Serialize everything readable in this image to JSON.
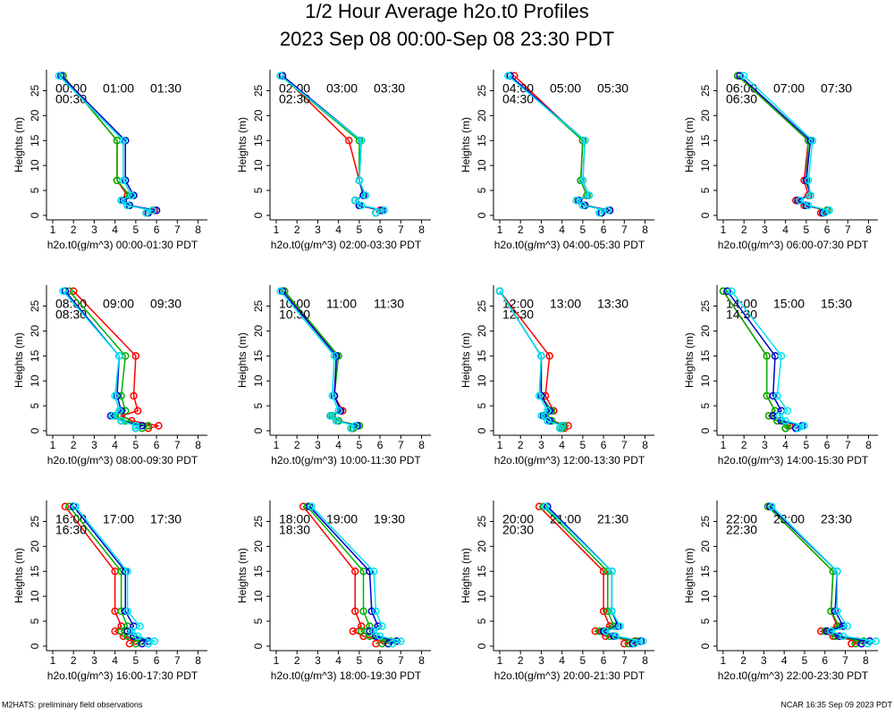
{
  "title": "1/2 Hour Average h2o.t0 Profiles",
  "subtitle": "2023 Sep 08 00:00-Sep 08 23:30 PDT",
  "footer_left": "M2HATS: preliminary field observations",
  "footer_right": "NCAR 16:35 Sep 09 2023 PDT",
  "chart_data": [
    {
      "type": "line",
      "xlabel": "h2o.t0(g/m^3) 00:00-01:30 PDT",
      "ylabel": "Heights (m)",
      "xlim": [
        0.7,
        8.45
      ],
      "ylim": [
        -0.9,
        29.2
      ],
      "xticks": [
        1,
        2,
        3,
        4,
        5,
        6,
        7,
        8
      ],
      "yticks": [
        0,
        5,
        10,
        15,
        20,
        25
      ],
      "y": [
        28,
        15,
        7,
        4,
        3,
        2,
        1,
        0.5
      ],
      "series": [
        {
          "name": "00:00",
          "color": "#ff0000",
          "values": [
            1.5,
            4.1,
            4.1,
            4.6,
            4.3,
            4.6,
            5.9,
            5.5
          ]
        },
        {
          "name": "00:30",
          "color": "#00b000",
          "values": [
            1.5,
            4.1,
            4.1,
            4.7,
            4.3,
            4.6,
            5.8,
            5.5
          ]
        },
        {
          "name": "01:00",
          "color": "#0000cc",
          "values": [
            1.4,
            4.5,
            4.5,
            4.9,
            4.4,
            4.7,
            6.0,
            5.6
          ]
        },
        {
          "name": "01:30",
          "color": "#00e5ee",
          "values": [
            1.3,
            4.4,
            4.4,
            4.8,
            4.3,
            4.6,
            5.8,
            5.5
          ]
        }
      ]
    },
    {
      "type": "line",
      "xlabel": "h2o.t0(g/m^3) 02:00-03:30 PDT",
      "ylabel": "Heights (m)",
      "xlim": [
        0.7,
        8.45
      ],
      "ylim": [
        -0.9,
        29.2
      ],
      "xticks": [
        1,
        2,
        3,
        4,
        5,
        6,
        7,
        8
      ],
      "yticks": [
        0,
        5,
        10,
        15,
        20,
        25
      ],
      "y": [
        28,
        15,
        7,
        4,
        3,
        2,
        1,
        0.5
      ],
      "series": [
        {
          "name": "02:00",
          "color": "#ff0000",
          "values": [
            1.3,
            4.5,
            5.0,
            5.2,
            4.8,
            5.0,
            6.0,
            5.8
          ]
        },
        {
          "name": "02:30",
          "color": "#00b000",
          "values": [
            1.2,
            5.0,
            5.0,
            5.3,
            4.8,
            5.0,
            6.1,
            5.8
          ]
        },
        {
          "name": "03:00",
          "color": "#0000cc",
          "values": [
            1.3,
            5.1,
            5.0,
            5.2,
            4.8,
            5.0,
            6.1,
            5.8
          ]
        },
        {
          "name": "03:30",
          "color": "#00e5ee",
          "values": [
            1.2,
            5.1,
            5.0,
            5.3,
            4.8,
            5.1,
            6.2,
            5.8
          ]
        }
      ]
    },
    {
      "type": "line",
      "xlabel": "h2o.t0(g/m^3) 04:00-05:30 PDT",
      "ylabel": "Heights (m)",
      "xlim": [
        0.7,
        8.45
      ],
      "ylim": [
        -0.9,
        29.2
      ],
      "xticks": [
        1,
        2,
        3,
        4,
        5,
        6,
        7,
        8
      ],
      "yticks": [
        0,
        5,
        10,
        15,
        20,
        25
      ],
      "y": [
        28,
        15,
        7,
        4,
        3,
        2,
        1,
        0.5
      ],
      "series": [
        {
          "name": "04:00",
          "color": "#ff0000",
          "values": [
            1.7,
            5.0,
            4.9,
            5.2,
            4.7,
            5.1,
            6.3,
            5.9
          ]
        },
        {
          "name": "04:30",
          "color": "#00b000",
          "values": [
            1.5,
            5.0,
            4.9,
            5.2,
            4.7,
            5.0,
            6.2,
            5.8
          ]
        },
        {
          "name": "05:00",
          "color": "#0000cc",
          "values": [
            1.5,
            5.1,
            5.0,
            5.3,
            4.8,
            5.1,
            6.3,
            5.9
          ]
        },
        {
          "name": "05:30",
          "color": "#00e5ee",
          "values": [
            1.4,
            5.1,
            5.0,
            5.3,
            4.7,
            5.0,
            6.2,
            5.8
          ]
        }
      ]
    },
    {
      "type": "line",
      "xlabel": "h2o.t0(g/m^3) 06:00-07:30 PDT",
      "ylabel": "Heights (m)",
      "xlim": [
        0.7,
        8.45
      ],
      "ylim": [
        -0.9,
        29.2
      ],
      "xticks": [
        1,
        2,
        3,
        4,
        5,
        6,
        7,
        8
      ],
      "yticks": [
        0,
        5,
        10,
        15,
        20,
        25
      ],
      "y": [
        28,
        15,
        7,
        4,
        3,
        2,
        1,
        0.5
      ],
      "series": [
        {
          "name": "06:00",
          "color": "#ff0000",
          "values": [
            1.7,
            5.1,
            4.9,
            5.1,
            4.5,
            4.9,
            6.0,
            5.7
          ]
        },
        {
          "name": "06:30",
          "color": "#00b000",
          "values": [
            1.7,
            5.1,
            5.0,
            5.2,
            4.6,
            5.0,
            6.0,
            5.8
          ]
        },
        {
          "name": "07:00",
          "color": "#0000cc",
          "values": [
            1.8,
            5.2,
            5.0,
            5.2,
            4.6,
            5.0,
            6.1,
            5.8
          ]
        },
        {
          "name": "07:30",
          "color": "#00e5ee",
          "values": [
            2.0,
            5.3,
            5.1,
            5.2,
            4.7,
            5.1,
            6.1,
            5.9
          ]
        }
      ]
    },
    {
      "type": "line",
      "xlabel": "h2o.t0(g/m^3) 08:00-09:30 PDT",
      "ylabel": "Heights (m)",
      "xlim": [
        0.7,
        8.45
      ],
      "ylim": [
        -0.9,
        29.2
      ],
      "xticks": [
        1,
        2,
        3,
        4,
        5,
        6,
        7,
        8
      ],
      "yticks": [
        0,
        5,
        10,
        15,
        20,
        25
      ],
      "y": [
        28,
        15,
        7,
        4,
        3,
        2,
        1,
        0.5
      ],
      "series": [
        {
          "name": "08:00",
          "color": "#ff0000",
          "values": [
            2.0,
            5.0,
            4.9,
            5.1,
            4.3,
            4.8,
            6.1,
            5.6
          ]
        },
        {
          "name": "08:30",
          "color": "#00b000",
          "values": [
            1.8,
            4.5,
            4.3,
            4.5,
            4.0,
            4.5,
            5.6,
            5.3
          ]
        },
        {
          "name": "09:00",
          "color": "#0000cc",
          "values": [
            1.6,
            4.2,
            4.1,
            4.3,
            3.8,
            4.3,
            5.3,
            5.0
          ]
        },
        {
          "name": "09:30",
          "color": "#00e5ee",
          "values": [
            1.5,
            4.2,
            4.0,
            4.2,
            3.9,
            4.3,
            5.0,
            5.0
          ]
        }
      ]
    },
    {
      "type": "line",
      "xlabel": "h2o.t0(g/m^3) 10:00-11:30 PDT",
      "ylabel": "Heights (m)",
      "xlim": [
        0.7,
        8.45
      ],
      "ylim": [
        -0.9,
        29.2
      ],
      "xticks": [
        1,
        2,
        3,
        4,
        5,
        6,
        7,
        8
      ],
      "yticks": [
        0,
        5,
        10,
        15,
        20,
        25
      ],
      "y": [
        28,
        15,
        7,
        4,
        3,
        2,
        1,
        0.5
      ],
      "series": [
        {
          "name": "10:00",
          "color": "#ff0000",
          "values": [
            1.4,
            3.9,
            3.8,
            4.2,
            3.6,
            4.0,
            5.0,
            4.7
          ]
        },
        {
          "name": "10:30",
          "color": "#00b000",
          "values": [
            1.4,
            4.0,
            3.8,
            4.1,
            3.7,
            4.0,
            5.0,
            4.7
          ]
        },
        {
          "name": "11:00",
          "color": "#0000cc",
          "values": [
            1.3,
            3.9,
            3.8,
            4.1,
            3.6,
            3.9,
            4.9,
            4.6
          ]
        },
        {
          "name": "11:30",
          "color": "#00e5ee",
          "values": [
            1.2,
            3.8,
            3.7,
            4.0,
            3.6,
            3.9,
            4.8,
            4.6
          ]
        }
      ]
    },
    {
      "type": "line",
      "xlabel": "h2o.t0(g/m^3) 12:00-13:30 PDT",
      "ylabel": "Heights (m)",
      "xlim": [
        0.7,
        8.45
      ],
      "ylim": [
        -0.9,
        29.2
      ],
      "xticks": [
        1,
        2,
        3,
        4,
        5,
        6,
        7,
        8
      ],
      "yticks": [
        0,
        5,
        10,
        15,
        20,
        25
      ],
      "y": [
        28,
        15,
        7,
        4,
        3,
        2,
        1,
        0.5
      ],
      "series": [
        {
          "name": "12:00",
          "color": "#ff0000",
          "values": [
            1.0,
            3.4,
            3.2,
            3.6,
            3.2,
            3.5,
            4.3,
            4.1
          ]
        },
        {
          "name": "12:30",
          "color": "#00b000",
          "values": [
            1.0,
            3.0,
            3.0,
            3.5,
            3.2,
            3.5,
            4.1,
            4.0
          ]
        },
        {
          "name": "13:00",
          "color": "#0000cc",
          "values": [
            1.0,
            3.0,
            3.0,
            3.4,
            3.1,
            3.4,
            4.0,
            3.9
          ]
        },
        {
          "name": "13:30",
          "color": "#00e5ee",
          "values": [
            1.0,
            3.0,
            2.9,
            3.3,
            3.0,
            3.3,
            4.0,
            3.9
          ]
        }
      ]
    },
    {
      "type": "line",
      "xlabel": "h2o.t0(g/m^3) 14:00-15:30 PDT",
      "ylabel": "Heights (m)",
      "xlim": [
        0.7,
        8.45
      ],
      "ylim": [
        -0.9,
        29.2
      ],
      "xticks": [
        1,
        2,
        3,
        4,
        5,
        6,
        7,
        8
      ],
      "yticks": [
        0,
        5,
        10,
        15,
        20,
        25
      ],
      "y": [
        28,
        15,
        7,
        4,
        3,
        2,
        1,
        0.5
      ],
      "series": [
        {
          "name": "14:00",
          "color": "#ff0000",
          "values": [
            1.0,
            3.1,
            3.1,
            3.5,
            3.2,
            3.6,
            4.2,
            4.0
          ]
        },
        {
          "name": "14:30",
          "color": "#00b000",
          "values": [
            1.0,
            3.1,
            3.1,
            3.5,
            3.2,
            3.6,
            4.1,
            4.0
          ]
        },
        {
          "name": "15:00",
          "color": "#0000cc",
          "values": [
            1.2,
            3.5,
            3.4,
            3.8,
            3.4,
            3.8,
            4.8,
            4.5
          ]
        },
        {
          "name": "15:30",
          "color": "#00e5ee",
          "values": [
            1.4,
            3.8,
            3.6,
            4.1,
            3.7,
            4.0,
            4.9,
            4.6
          ]
        }
      ]
    },
    {
      "type": "line",
      "xlabel": "h2o.t0(g/m^3) 16:00-17:30 PDT",
      "ylabel": "Heights (m)",
      "xlim": [
        0.7,
        8.45
      ],
      "ylim": [
        -0.9,
        29.2
      ],
      "xticks": [
        1,
        2,
        3,
        4,
        5,
        6,
        7,
        8
      ],
      "yticks": [
        0,
        5,
        10,
        15,
        20,
        25
      ],
      "y": [
        28,
        15,
        7,
        4,
        3,
        2,
        1,
        0.5
      ],
      "series": [
        {
          "name": "16:00",
          "color": "#ff0000",
          "values": [
            1.6,
            4.0,
            4.0,
            4.3,
            4.0,
            4.4,
            5.0,
            4.7
          ]
        },
        {
          "name": "16:30",
          "color": "#00b000",
          "values": [
            1.8,
            4.3,
            4.3,
            4.6,
            4.3,
            4.6,
            5.3,
            5.0
          ]
        },
        {
          "name": "17:00",
          "color": "#0000cc",
          "values": [
            2.0,
            4.5,
            4.5,
            4.9,
            4.6,
            4.9,
            5.6,
            5.3
          ]
        },
        {
          "name": "17:30",
          "color": "#00e5ee",
          "values": [
            2.1,
            4.6,
            4.6,
            5.2,
            4.8,
            5.1,
            5.9,
            5.6
          ]
        }
      ]
    },
    {
      "type": "line",
      "xlabel": "h2o.t0(g/m^3) 18:00-19:30 PDT",
      "ylabel": "Heights (m)",
      "xlim": [
        0.7,
        8.45
      ],
      "ylim": [
        -0.9,
        29.2
      ],
      "xticks": [
        1,
        2,
        3,
        4,
        5,
        6,
        7,
        8
      ],
      "yticks": [
        0,
        5,
        10,
        15,
        20,
        25
      ],
      "y": [
        28,
        15,
        7,
        4,
        3,
        2,
        1,
        0.5
      ],
      "series": [
        {
          "name": "18:00",
          "color": "#ff0000",
          "values": [
            2.3,
            4.8,
            4.8,
            5.1,
            4.7,
            5.2,
            6.2,
            5.8
          ]
        },
        {
          "name": "18:30",
          "color": "#00b000",
          "values": [
            2.5,
            5.2,
            5.2,
            5.5,
            5.1,
            5.5,
            6.5,
            6.1
          ]
        },
        {
          "name": "19:00",
          "color": "#0000cc",
          "values": [
            2.6,
            5.5,
            5.6,
            5.9,
            5.5,
            5.8,
            6.8,
            6.4
          ]
        },
        {
          "name": "19:30",
          "color": "#00e5ee",
          "values": [
            2.7,
            5.7,
            5.8,
            6.1,
            5.7,
            6.0,
            7.0,
            6.6
          ]
        }
      ]
    },
    {
      "type": "line",
      "xlabel": "h2o.t0(g/m^3) 20:00-21:30 PDT",
      "ylabel": "Heights (m)",
      "xlim": [
        0.7,
        8.45
      ],
      "ylim": [
        -0.9,
        29.2
      ],
      "xticks": [
        1,
        2,
        3,
        4,
        5,
        6,
        7,
        8
      ],
      "yticks": [
        0,
        5,
        10,
        15,
        20,
        25
      ],
      "y": [
        28,
        15,
        7,
        4,
        3,
        2,
        1,
        0.5
      ],
      "series": [
        {
          "name": "20:00",
          "color": "#ff0000",
          "values": [
            2.9,
            6.0,
            6.0,
            6.3,
            5.6,
            6.1,
            7.5,
            7.0
          ]
        },
        {
          "name": "20:30",
          "color": "#00b000",
          "values": [
            3.1,
            6.2,
            6.2,
            6.5,
            5.8,
            6.3,
            7.6,
            7.2
          ]
        },
        {
          "name": "21:00",
          "color": "#0000cc",
          "values": [
            3.3,
            6.4,
            6.4,
            6.7,
            6.0,
            6.5,
            7.8,
            7.4
          ]
        },
        {
          "name": "21:30",
          "color": "#00e5ee",
          "values": [
            3.2,
            6.4,
            6.4,
            6.8,
            6.1,
            6.6,
            7.9,
            7.5
          ]
        }
      ]
    },
    {
      "type": "line",
      "xlabel": "h2o.t0(g/m^3) 22:00-23:30 PDT",
      "ylabel": "Heights (m)",
      "xlim": [
        0.7,
        8.6
      ],
      "ylim": [
        -0.9,
        29.2
      ],
      "xticks": [
        1,
        2,
        3,
        4,
        5,
        6,
        7,
        8
      ],
      "yticks": [
        0,
        5,
        10,
        15,
        20,
        25
      ],
      "y": [
        28,
        15,
        7,
        4,
        3,
        2,
        1,
        0.5
      ],
      "series": [
        {
          "name": "22:00",
          "color": "#ff0000",
          "values": [
            3.2,
            6.4,
            6.3,
            6.6,
            5.8,
            6.4,
            7.6,
            7.3
          ]
        },
        {
          "name": "22:30",
          "color": "#00b000",
          "values": [
            3.2,
            6.4,
            6.3,
            6.7,
            6.0,
            6.5,
            7.9,
            7.5
          ]
        },
        {
          "name": "23:00",
          "color": "#0000cc",
          "values": [
            3.3,
            6.6,
            6.5,
            6.9,
            6.1,
            6.7,
            8.2,
            7.8
          ]
        },
        {
          "name": "23:30",
          "color": "#00e5ee",
          "values": [
            3.4,
            6.6,
            6.6,
            7.1,
            6.3,
            6.9,
            8.5,
            8.1
          ]
        }
      ]
    }
  ]
}
